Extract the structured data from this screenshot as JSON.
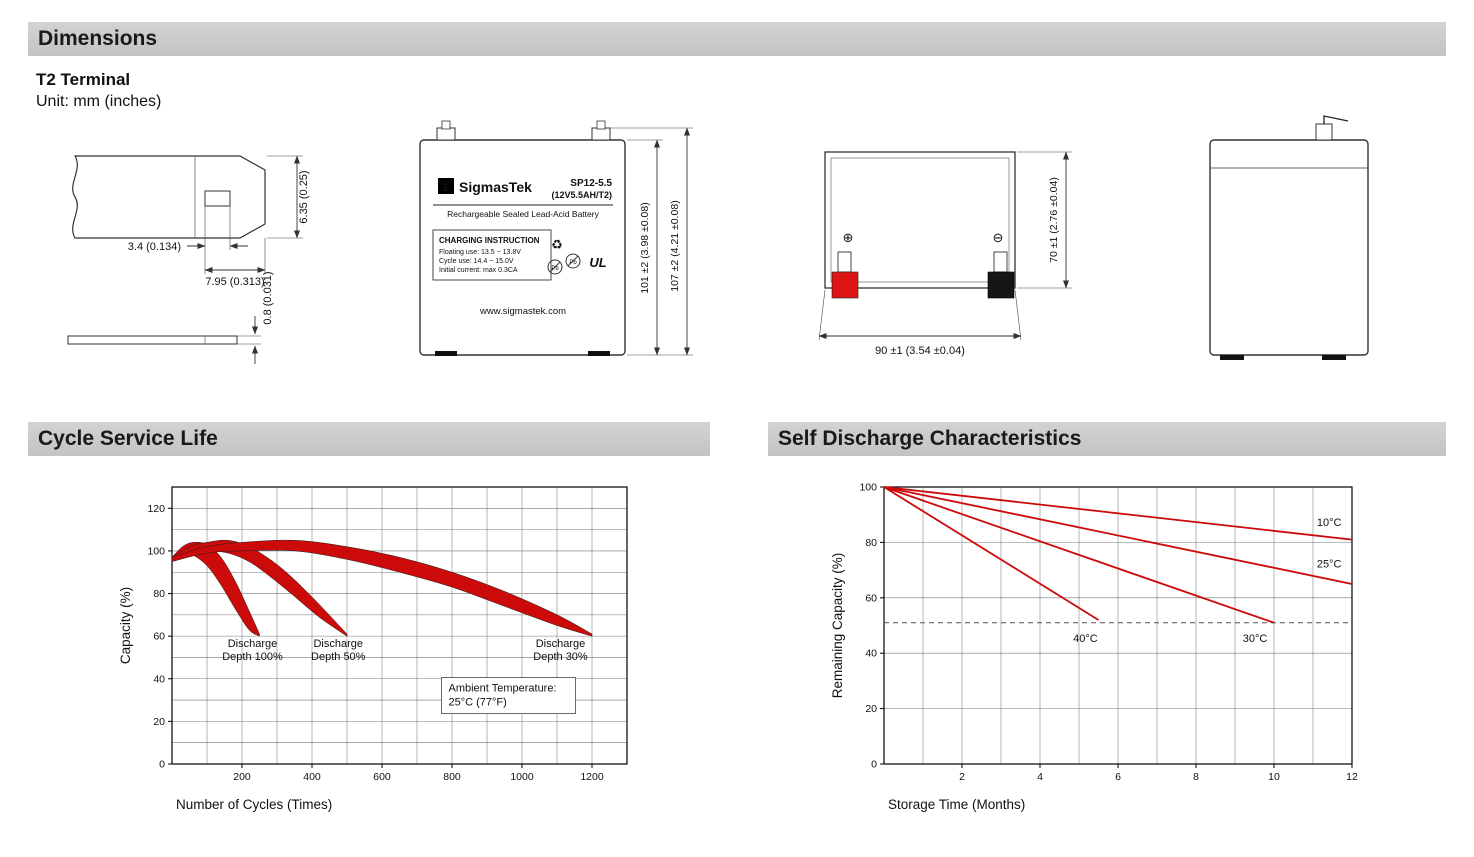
{
  "page": {
    "dimensions_header": "Dimensions",
    "terminal_title": "T2 Terminal",
    "unit_note": "Unit: mm (inches)",
    "cycle_header": "Cycle Service Life",
    "self_discharge_header": "Self Discharge Characteristics"
  },
  "drawings": {
    "terminal": {
      "dim_height": "6.35 (0.25)",
      "dim_slot": "3.4 (0.134)",
      "dim_width": "7.95 (0.313)",
      "dim_thickness": "0.8 (0.031)"
    },
    "front": {
      "logo_sigma": "Σ",
      "brand": "SigmasTek",
      "model": "SP12-5.5",
      "rating": "(12V5.5AH/T2)",
      "battery_type": "Rechargeable Sealed Lead-Acid Battery",
      "charging_title": "CHARGING INSTRUCTION",
      "charging_lines": [
        "Floating use: 13.5 ~ 13.8V",
        "Cycle use: 14.4 ~ 15.0V",
        "Initial current: max 0.3CA"
      ],
      "recycle_icon": "♻",
      "pb_label": "Pb",
      "ul_label": "UL",
      "website": "www.sigmastek.com",
      "dim_case_height": "101 ±2 (3.98 ±0.08)",
      "dim_total_height": "107 ±2 (4.21 ±0.08)"
    },
    "rear": {
      "positive_symbol": "⊕",
      "negative_symbol": "⊖",
      "dim_height": "70 ±1 (2.76 ±0.04)",
      "dim_width": "90 ±1 (3.54 ±0.04)"
    }
  },
  "chart_data": [
    {
      "type": "area",
      "title": "Cycle Service Life",
      "xlabel": "Number of Cycles (Times)",
      "ylabel": "Capacity (%)",
      "xlim": [
        0,
        1300
      ],
      "ylim": [
        0,
        130
      ],
      "x_ticks": [
        200,
        400,
        600,
        800,
        1000,
        1200
      ],
      "y_ticks": [
        0,
        20,
        40,
        60,
        80,
        100,
        120
      ],
      "x_grid_step": 100,
      "y_grid_step": 10,
      "line_color": "#cc0a0a",
      "bands": [
        {
          "name": "Discharge Depth 100%",
          "upper": [
            [
              0,
              97
            ],
            [
              30,
              102
            ],
            [
              60,
              104
            ],
            [
              100,
              103
            ],
            [
              140,
              97
            ],
            [
              180,
              86
            ],
            [
              220,
              72
            ],
            [
              250,
              61
            ]
          ],
          "lower": [
            [
              0,
              95
            ],
            [
              30,
              98
            ],
            [
              60,
              98
            ],
            [
              100,
              93
            ],
            [
              140,
              84
            ],
            [
              180,
              73
            ],
            [
              220,
              63
            ],
            [
              250,
              60
            ]
          ]
        },
        {
          "name": "Discharge Depth 50%",
          "upper": [
            [
              0,
              97
            ],
            [
              50,
              102
            ],
            [
              100,
              104
            ],
            [
              160,
              105
            ],
            [
              220,
              102
            ],
            [
              280,
              96
            ],
            [
              340,
              88
            ],
            [
              420,
              75
            ],
            [
              500,
              61
            ]
          ],
          "lower": [
            [
              0,
              95
            ],
            [
              50,
              99
            ],
            [
              100,
              100
            ],
            [
              160,
              99
            ],
            [
              220,
              95
            ],
            [
              280,
              88
            ],
            [
              340,
              80
            ],
            [
              420,
              69
            ],
            [
              500,
              60
            ]
          ]
        },
        {
          "name": "Discharge Depth 30%",
          "upper": [
            [
              0,
              97
            ],
            [
              100,
              102
            ],
            [
              200,
              104
            ],
            [
              350,
              105
            ],
            [
              500,
              102
            ],
            [
              650,
              97
            ],
            [
              800,
              90
            ],
            [
              950,
              81
            ],
            [
              1100,
              70
            ],
            [
              1200,
              61
            ]
          ],
          "lower": [
            [
              0,
              95
            ],
            [
              100,
              99
            ],
            [
              200,
              100
            ],
            [
              350,
              100
            ],
            [
              500,
              96
            ],
            [
              650,
              90
            ],
            [
              800,
              83
            ],
            [
              950,
              74
            ],
            [
              1100,
              65
            ],
            [
              1200,
              60
            ]
          ]
        }
      ],
      "band_labels": [
        {
          "lines": [
            "Discharge",
            "Depth 100%"
          ],
          "x": 230,
          "y": 55
        },
        {
          "lines": [
            "Discharge",
            "Depth 50%"
          ],
          "x": 475,
          "y": 55
        },
        {
          "lines": [
            "Discharge",
            "Depth 30%"
          ],
          "x": 1110,
          "y": 55
        }
      ],
      "annotation": {
        "lines": [
          "Ambient Temperature:",
          "25°C (77°F)"
        ],
        "x": 790,
        "y": 34
      }
    },
    {
      "type": "line",
      "title": "Self Discharge Characteristics",
      "xlabel": "Storage Time (Months)",
      "ylabel": "Remaining Capacity (%)",
      "xlim": [
        0,
        12
      ],
      "ylim": [
        0,
        100
      ],
      "x_ticks": [
        2,
        4,
        6,
        8,
        10,
        12
      ],
      "y_ticks": [
        0,
        20,
        40,
        60,
        80,
        100
      ],
      "x_grid_step": 1,
      "y_grid_step": 20,
      "line_color": "#cc0a0a",
      "series": [
        {
          "name": "10°C",
          "points": [
            [
              0,
              100
            ],
            [
              12,
              81
            ]
          ],
          "label": {
            "x": 11.1,
            "y": 86
          }
        },
        {
          "name": "25°C",
          "points": [
            [
              0,
              100
            ],
            [
              12,
              65
            ]
          ],
          "label": {
            "x": 11.1,
            "y": 71
          }
        },
        {
          "name": "40°C",
          "points": [
            [
              0,
              100
            ],
            [
              5.5,
              52
            ]
          ],
          "label": {
            "x": 4.85,
            "y": 44
          }
        },
        {
          "name": "30°C",
          "points": [
            [
              0,
              100
            ],
            [
              10,
              51
            ]
          ],
          "label": {
            "x": 9.2,
            "y": 44
          }
        }
      ],
      "reference_line_y": 51
    }
  ]
}
